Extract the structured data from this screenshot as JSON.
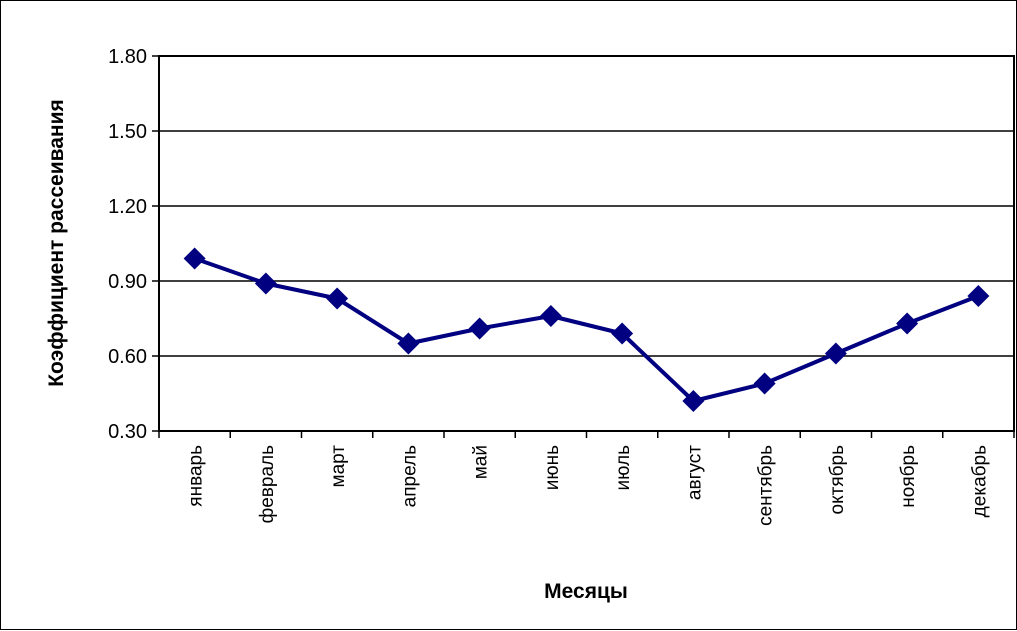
{
  "chart_data": {
    "type": "line",
    "title": "",
    "xlabel": "Месяцы",
    "ylabel": "Коэффициент рассеивания",
    "categories": [
      "январь",
      "февраль",
      "март",
      "апрель",
      "май",
      "июнь",
      "июль",
      "август",
      "сентябрь",
      "октябрь",
      "ноябрь",
      "декабрь"
    ],
    "y_ticks": [
      "0.30",
      "0.60",
      "0.90",
      "1.20",
      "1.50",
      "1.80"
    ],
    "ylim": [
      0.3,
      1.8
    ],
    "grid": true,
    "legend": "none",
    "series": [
      {
        "values": [
          0.99,
          0.89,
          0.83,
          0.65,
          0.71,
          0.76,
          0.69,
          0.42,
          0.49,
          0.61,
          0.73,
          0.84
        ],
        "color": "#000080",
        "marker": "diamond"
      }
    ]
  }
}
